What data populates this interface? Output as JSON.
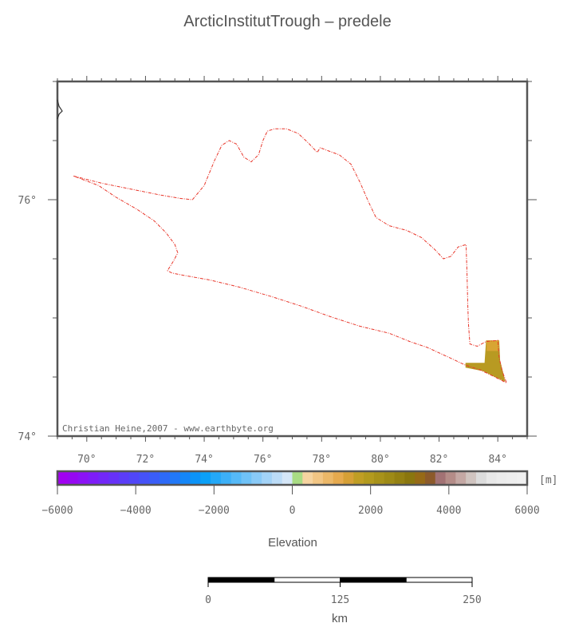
{
  "title": "ArcticInstitutTrough – predele",
  "credit": "Christian Heine,2007 - www.earthbyte.org",
  "map": {
    "lon_range": [
      69,
      85
    ],
    "lat_range": [
      74,
      77
    ],
    "lon_tick_labels": [
      "70°",
      "72°",
      "74°",
      "76°",
      "78°",
      "80°",
      "82°",
      "84°"
    ],
    "lon_tick_values": [
      70,
      72,
      74,
      76,
      78,
      80,
      82,
      84
    ],
    "lat_tick_labels": [
      "74°",
      "76°"
    ],
    "lat_tick_values": [
      74,
      76
    ],
    "outline_color": "#e8362a",
    "outline_lonlat": [
      [
        69.55,
        76.2
      ],
      [
        70.5,
        76.14
      ],
      [
        71.5,
        76.09
      ],
      [
        72.5,
        76.04
      ],
      [
        73.2,
        76.01
      ],
      [
        73.6,
        76.0
      ],
      [
        74.0,
        76.12
      ],
      [
        74.35,
        76.33
      ],
      [
        74.6,
        76.46
      ],
      [
        74.85,
        76.5
      ],
      [
        75.1,
        76.47
      ],
      [
        75.35,
        76.36
      ],
      [
        75.6,
        76.32
      ],
      [
        75.85,
        76.38
      ],
      [
        76.0,
        76.5
      ],
      [
        76.15,
        76.58
      ],
      [
        76.4,
        76.6
      ],
      [
        76.8,
        76.6
      ],
      [
        77.2,
        76.56
      ],
      [
        77.55,
        76.48
      ],
      [
        77.85,
        76.4
      ],
      [
        77.95,
        76.44
      ],
      [
        78.15,
        76.42
      ],
      [
        78.6,
        76.38
      ],
      [
        79.0,
        76.3
      ],
      [
        79.3,
        76.15
      ],
      [
        79.6,
        75.98
      ],
      [
        79.85,
        75.85
      ],
      [
        80.3,
        75.78
      ],
      [
        80.9,
        75.74
      ],
      [
        81.4,
        75.68
      ],
      [
        81.85,
        75.58
      ],
      [
        82.15,
        75.5
      ],
      [
        82.4,
        75.52
      ],
      [
        82.65,
        75.6
      ],
      [
        82.92,
        75.62
      ],
      [
        82.95,
        75.4
      ],
      [
        82.98,
        75.1
      ],
      [
        83.0,
        74.95
      ],
      [
        83.05,
        74.78
      ],
      [
        83.3,
        74.76
      ],
      [
        83.6,
        74.8
      ],
      [
        84.0,
        74.81
      ],
      [
        84.05,
        74.66
      ],
      [
        84.15,
        74.55
      ],
      [
        84.3,
        74.45
      ],
      [
        83.9,
        74.5
      ],
      [
        83.4,
        74.56
      ],
      [
        82.9,
        74.6
      ],
      [
        82.3,
        74.67
      ],
      [
        81.6,
        74.75
      ],
      [
        81.0,
        74.8
      ],
      [
        80.3,
        74.87
      ],
      [
        79.3,
        74.93
      ],
      [
        78.3,
        75.01
      ],
      [
        77.3,
        75.1
      ],
      [
        76.3,
        75.18
      ],
      [
        75.2,
        75.26
      ],
      [
        74.2,
        75.32
      ],
      [
        73.3,
        75.36
      ],
      [
        72.9,
        75.38
      ],
      [
        72.75,
        75.4
      ],
      [
        72.95,
        75.48
      ],
      [
        73.1,
        75.55
      ],
      [
        73.0,
        75.62
      ],
      [
        72.7,
        75.72
      ],
      [
        72.3,
        75.82
      ],
      [
        71.7,
        75.92
      ],
      [
        71.0,
        76.02
      ],
      [
        70.4,
        76.12
      ],
      [
        69.55,
        76.2
      ]
    ],
    "elevation_patch_lonlat": [
      [
        83.6,
        74.81
      ],
      [
        84.05,
        74.81
      ],
      [
        84.08,
        74.64
      ],
      [
        84.2,
        74.52
      ],
      [
        84.25,
        74.46
      ],
      [
        83.9,
        74.5
      ],
      [
        83.5,
        74.55
      ],
      [
        82.9,
        74.58
      ],
      [
        82.9,
        74.62
      ],
      [
        83.55,
        74.62
      ]
    ],
    "elevation_patch_color": "#b89a22",
    "elevation_patch_highlight_color": "#e0a838",
    "edge_mark_lat": 76.75
  },
  "colorbar": {
    "min": -6000,
    "max": 6000,
    "unit_label": "[m]",
    "tick_labels": [
      "−6000",
      "−4000",
      "−2000",
      "0",
      "2000",
      "4000",
      "6000"
    ],
    "tick_values": [
      -6000,
      -4000,
      -2000,
      0,
      2000,
      4000,
      6000
    ],
    "colors": [
      "#a100f2",
      "#9608f2",
      "#8b12f5",
      "#7e1cf7",
      "#7227f7",
      "#6731f7",
      "#5b3cf7",
      "#5046f7",
      "#4552f7",
      "#3a5df7",
      "#2d6af7",
      "#2178f7",
      "#1486f7",
      "#0b93f7",
      "#0aa0f7",
      "#23a8f7",
      "#3cb0f7",
      "#55b9f7",
      "#6fc2f7",
      "#89caf7",
      "#a3d3f7",
      "#bcdcf7",
      "#d5e6f7",
      "#a9dc84",
      "#f6d4a0",
      "#f2c684",
      "#ecb868",
      "#e6aa4e",
      "#d6a036",
      "#c09e24",
      "#b39a1e",
      "#a8921a",
      "#9e8a16",
      "#948012",
      "#8a760e",
      "#966a16",
      "#8c5a2a",
      "#a27274",
      "#b48c88",
      "#c4a8a4",
      "#d0c4c0",
      "#dcdcdc",
      "#e8e8e8",
      "#ececec",
      "#eeeeee",
      "#f0f0f0"
    ],
    "title": "Elevation"
  },
  "scalebar": {
    "tick_labels": [
      "0",
      "125",
      "250"
    ],
    "unit": "km"
  }
}
